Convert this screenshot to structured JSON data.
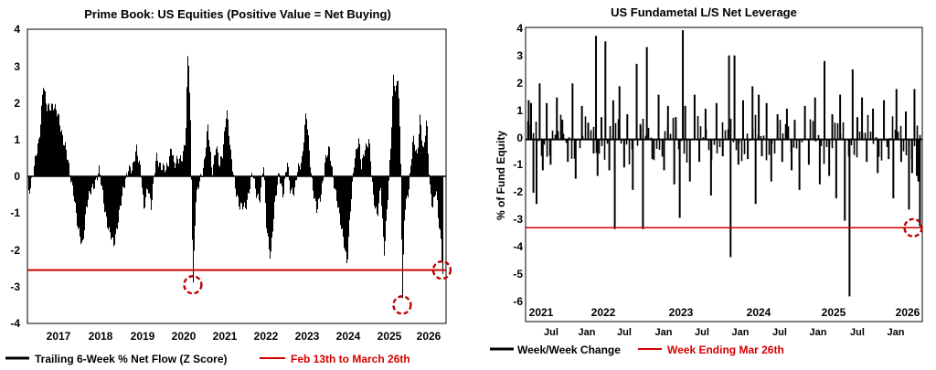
{
  "colors": {
    "bars": "#000000",
    "reference": "#d40000",
    "axis": "#000000",
    "marker": "#c00000"
  },
  "chart_data": [
    {
      "type": "bar",
      "title": "Prime Book: US Equities (Positive Value = Net Buying)",
      "xlabel": "",
      "ylabel": "",
      "ylim": [
        -4,
        4
      ],
      "y_ticks": [
        "4",
        "3",
        "2",
        "1",
        "0",
        "-1",
        "-2",
        "-3",
        "-4"
      ],
      "x_ticks": [
        "2017",
        "2018",
        "2019",
        "2020",
        "2021",
        "2022",
        "2023",
        "2024",
        "2025",
        "2026"
      ],
      "xlim": [
        2016.35,
        2026.35
      ],
      "reference_line": {
        "value": -2.55,
        "label": "Feb 13th to March 26th"
      },
      "series_label": "Trailing 6-Week % Net Flow (Z Score)",
      "highlight_points": [
        {
          "x": 2020.3,
          "y": -2.95
        },
        {
          "x": 2025.3,
          "y": -3.5
        },
        {
          "x": 2026.25,
          "y": -2.55
        }
      ],
      "anchors": [
        [
          2016.35,
          -0.5
        ],
        [
          2016.5,
          0.2
        ],
        [
          2016.62,
          1.0
        ],
        [
          2016.72,
          2.55
        ],
        [
          2016.8,
          1.8
        ],
        [
          2016.95,
          2.0
        ],
        [
          2017.1,
          1.5
        ],
        [
          2017.25,
          0.8
        ],
        [
          2017.35,
          0.05
        ],
        [
          2017.45,
          -0.4
        ],
        [
          2017.55,
          -1.5
        ],
        [
          2017.65,
          -1.9
        ],
        [
          2017.75,
          -0.8
        ],
        [
          2017.9,
          -0.3
        ],
        [
          2018.05,
          0.15
        ],
        [
          2018.18,
          -0.8
        ],
        [
          2018.3,
          -1.55
        ],
        [
          2018.4,
          -1.9
        ],
        [
          2018.5,
          -1.2
        ],
        [
          2018.6,
          -0.6
        ],
        [
          2018.75,
          0.3
        ],
        [
          2018.85,
          0.1
        ],
        [
          2018.95,
          0.8
        ],
        [
          2019.05,
          0.2
        ],
        [
          2019.12,
          -1.0
        ],
        [
          2019.22,
          -0.2
        ],
        [
          2019.3,
          -0.8
        ],
        [
          2019.42,
          0.5
        ],
        [
          2019.55,
          0.3
        ],
        [
          2019.65,
          0.1
        ],
        [
          2019.7,
          0.3
        ],
        [
          2019.78,
          0.9
        ],
        [
          2019.85,
          0.25
        ],
        [
          2019.93,
          0.4
        ],
        [
          2020.05,
          0.6
        ],
        [
          2020.12,
          1.0
        ],
        [
          2020.18,
          3.55
        ],
        [
          2020.24,
          1.3
        ],
        [
          2020.3,
          -2.95
        ],
        [
          2020.36,
          -0.7
        ],
        [
          2020.45,
          -0.2
        ],
        [
          2020.55,
          0.3
        ],
        [
          2020.65,
          1.3
        ],
        [
          2020.75,
          0.1
        ],
        [
          2020.85,
          0.9
        ],
        [
          2020.93,
          0.2
        ],
        [
          2021.0,
          0.6
        ],
        [
          2021.1,
          1.9
        ],
        [
          2021.2,
          0.5
        ],
        [
          2021.3,
          -0.2
        ],
        [
          2021.42,
          -0.9
        ],
        [
          2021.55,
          -0.8
        ],
        [
          2021.65,
          -0.3
        ],
        [
          2021.72,
          0.05
        ],
        [
          2021.8,
          -0.4
        ],
        [
          2021.9,
          -0.6
        ],
        [
          2021.98,
          0.3
        ],
        [
          2022.05,
          -1.3
        ],
        [
          2022.15,
          -2.2
        ],
        [
          2022.25,
          -0.8
        ],
        [
          2022.35,
          0.2
        ],
        [
          2022.45,
          -0.6
        ],
        [
          2022.55,
          0.4
        ],
        [
          2022.62,
          -0.3
        ],
        [
          2022.72,
          -0.5
        ],
        [
          2022.8,
          0.2
        ],
        [
          2022.9,
          0.5
        ],
        [
          2023.0,
          1.7
        ],
        [
          2023.08,
          0.6
        ],
        [
          2023.15,
          -0.2
        ],
        [
          2023.25,
          -1.0
        ],
        [
          2023.35,
          -0.5
        ],
        [
          2023.45,
          0.4
        ],
        [
          2023.55,
          0.7
        ],
        [
          2023.62,
          0.2
        ],
        [
          2023.7,
          -0.4
        ],
        [
          2023.8,
          -1.2
        ],
        [
          2023.9,
          -1.7
        ],
        [
          2023.98,
          -2.4
        ],
        [
          2024.06,
          -0.9
        ],
        [
          2024.15,
          0.5
        ],
        [
          2024.25,
          1.0
        ],
        [
          2024.32,
          0.2
        ],
        [
          2024.4,
          0.8
        ],
        [
          2024.5,
          1.0
        ],
        [
          2024.6,
          -0.6
        ],
        [
          2024.7,
          -1.0
        ],
        [
          2024.78,
          -0.3
        ],
        [
          2024.86,
          -2.2
        ],
        [
          2024.95,
          -0.5
        ],
        [
          2025.02,
          0.8
        ],
        [
          2025.08,
          2.6
        ],
        [
          2025.14,
          2.3
        ],
        [
          2025.2,
          2.85
        ],
        [
          2025.26,
          0.3
        ],
        [
          2025.3,
          -3.5
        ],
        [
          2025.35,
          -1.0
        ],
        [
          2025.45,
          -0.3
        ],
        [
          2025.55,
          1.0
        ],
        [
          2025.65,
          0.5
        ],
        [
          2025.72,
          1.7
        ],
        [
          2025.8,
          0.6
        ],
        [
          2025.88,
          1.5
        ],
        [
          2025.95,
          -0.2
        ],
        [
          2026.02,
          -0.8
        ],
        [
          2026.1,
          -0.4
        ],
        [
          2026.16,
          -1.2
        ],
        [
          2026.22,
          -1.7
        ],
        [
          2026.26,
          -2.55
        ],
        [
          2026.28,
          -2.55
        ]
      ]
    },
    {
      "type": "bar",
      "title": "US Fundametal L/S Net Leverage",
      "xlabel": "",
      "ylabel": "% of Fund Equity",
      "ylim": [
        -6.5,
        4
      ],
      "y_ticks": [
        "4",
        "3",
        "2",
        "1",
        "0",
        "-1",
        "-2",
        "-3",
        "-4",
        "-5",
        "-6"
      ],
      "x_ticks_top": [
        "2021",
        "2022",
        "2023",
        "2024",
        "2025",
        "2026"
      ],
      "x_ticks_bottom": [
        "Jul",
        "Jan",
        "Jul",
        "Jan",
        "Jul",
        "Jan",
        "Jul",
        "Jan",
        "Jul",
        "Jan"
      ],
      "xlim": [
        2020.98,
        2026.05
      ],
      "reference_line": {
        "value": -3.15,
        "label": "Week Ending Mar 26th"
      },
      "series_label": "Week/Week Change",
      "highlight_points": [
        {
          "x": 2026.02,
          "y": -3.15
        }
      ],
      "spikes": [
        [
          2021.02,
          1.4
        ],
        [
          2021.05,
          1.3
        ],
        [
          2021.08,
          -1.9
        ],
        [
          2021.12,
          -2.3
        ],
        [
          2021.16,
          2.0
        ],
        [
          2021.2,
          -1.1
        ],
        [
          2021.25,
          1.3
        ],
        [
          2021.3,
          -0.9
        ],
        [
          2021.38,
          1.5
        ],
        [
          2021.45,
          0.7
        ],
        [
          2021.52,
          -0.8
        ],
        [
          2021.58,
          2.0
        ],
        [
          2021.62,
          -1.4
        ],
        [
          2021.7,
          1.2
        ],
        [
          2021.78,
          0.6
        ],
        [
          2021.85,
          -0.5
        ],
        [
          2021.88,
          3.7
        ],
        [
          2021.9,
          -1.3
        ],
        [
          2021.95,
          0.8
        ],
        [
          2022.0,
          3.5
        ],
        [
          2022.05,
          -1.1
        ],
        [
          2022.1,
          1.4
        ],
        [
          2022.12,
          -3.2
        ],
        [
          2022.18,
          1.9
        ],
        [
          2022.24,
          -1.0
        ],
        [
          2022.28,
          0.9
        ],
        [
          2022.35,
          -1.8
        ],
        [
          2022.4,
          2.7
        ],
        [
          2022.45,
          0.5
        ],
        [
          2022.48,
          -3.2
        ],
        [
          2022.53,
          3.3
        ],
        [
          2022.6,
          -0.7
        ],
        [
          2022.68,
          1.6
        ],
        [
          2022.75,
          -1.1
        ],
        [
          2022.8,
          1.2
        ],
        [
          2022.88,
          -1.6
        ],
        [
          2022.9,
          0.8
        ],
        [
          2022.95,
          -2.8
        ],
        [
          2022.99,
          3.9
        ],
        [
          2023.02,
          1.2
        ],
        [
          2023.08,
          -1.5
        ],
        [
          2023.14,
          1.6
        ],
        [
          2023.2,
          -0.8
        ],
        [
          2023.28,
          1.1
        ],
        [
          2023.35,
          -2.0
        ],
        [
          2023.42,
          1.3
        ],
        [
          2023.5,
          -0.6
        ],
        [
          2023.58,
          3.0
        ],
        [
          2023.6,
          -4.2
        ],
        [
          2023.65,
          3.0
        ],
        [
          2023.7,
          -0.9
        ],
        [
          2023.76,
          1.4
        ],
        [
          2023.82,
          -0.7
        ],
        [
          2023.88,
          1.9
        ],
        [
          2023.92,
          -2.3
        ],
        [
          2023.96,
          1.6
        ],
        [
          2024.0,
          -0.6
        ],
        [
          2024.06,
          1.3
        ],
        [
          2024.12,
          -1.5
        ],
        [
          2024.2,
          0.9
        ],
        [
          2024.26,
          -0.8
        ],
        [
          2024.32,
          1.1
        ],
        [
          2024.38,
          -1.1
        ],
        [
          2024.42,
          0.7
        ],
        [
          2024.48,
          -1.8
        ],
        [
          2024.55,
          1.2
        ],
        [
          2024.6,
          -0.9
        ],
        [
          2024.68,
          1.5
        ],
        [
          2024.74,
          -1.6
        ],
        [
          2024.8,
          2.8
        ],
        [
          2024.86,
          -1.3
        ],
        [
          2024.9,
          0.9
        ],
        [
          2024.95,
          -2.1
        ],
        [
          2025.0,
          1.6
        ],
        [
          2025.06,
          -2.9
        ],
        [
          2025.12,
          -5.6
        ],
        [
          2025.16,
          2.5
        ],
        [
          2025.22,
          0.8
        ],
        [
          2025.28,
          1.5
        ],
        [
          2025.34,
          -0.8
        ],
        [
          2025.42,
          1.1
        ],
        [
          2025.48,
          -1.2
        ],
        [
          2025.56,
          1.4
        ],
        [
          2025.62,
          -0.7
        ],
        [
          2025.68,
          -2.1
        ],
        [
          2025.72,
          1.8
        ],
        [
          2025.78,
          -0.8
        ],
        [
          2025.84,
          1.0
        ],
        [
          2025.88,
          -2.5
        ],
        [
          2025.92,
          -1.2
        ],
        [
          2025.95,
          1.8
        ],
        [
          2025.98,
          -1.3
        ],
        [
          2026.0,
          -1.5
        ],
        [
          2026.02,
          -3.1
        ]
      ]
    }
  ]
}
